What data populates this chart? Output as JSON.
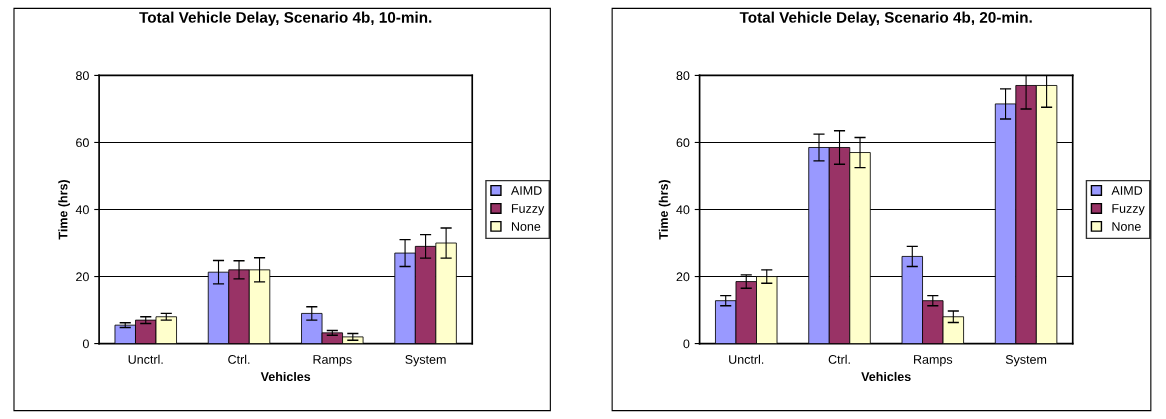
{
  "chart_data": [
    {
      "type": "bar",
      "title": "Total Vehicle Delay, Scenario 4b, 10-min.",
      "xlabel": "Vehicles",
      "ylabel": "Time (hrs)",
      "categories": [
        "Unctrl.",
        "Ctrl.",
        "Ramps",
        "System"
      ],
      "ylim": [
        0,
        80
      ],
      "yticks": [
        0,
        20,
        40,
        60,
        80
      ],
      "grid": "y",
      "legend": "right",
      "series": [
        {
          "name": "AIMD",
          "color": "#9999ff",
          "values": [
            5.5,
            21.3,
            9,
            27
          ],
          "errors": [
            0.7,
            3.5,
            2,
            4
          ]
        },
        {
          "name": "Fuzzy",
          "color": "#993366",
          "values": [
            7,
            22,
            3.2,
            29
          ],
          "errors": [
            1,
            2.7,
            0.7,
            3.5
          ]
        },
        {
          "name": "None",
          "color": "#ffffcc",
          "values": [
            8,
            22,
            2,
            30
          ],
          "errors": [
            1,
            3.6,
            1,
            4.5
          ]
        }
      ]
    },
    {
      "type": "bar",
      "title": "Total Vehicle Delay, Scenario 4b, 20-min.",
      "xlabel": "Vehicles",
      "ylabel": "Time (hrs)",
      "categories": [
        "Unctrl.",
        "Ctrl.",
        "Ramps",
        "System"
      ],
      "ylim": [
        0,
        80
      ],
      "yticks": [
        0,
        20,
        40,
        60,
        80
      ],
      "grid": "y",
      "legend": "right",
      "series": [
        {
          "name": "AIMD",
          "color": "#9999ff",
          "values": [
            12.8,
            58.5,
            26,
            71.5
          ],
          "errors": [
            1.5,
            4,
            3,
            4.5
          ]
        },
        {
          "name": "Fuzzy",
          "color": "#993366",
          "values": [
            18.5,
            58.5,
            12.8,
            77
          ],
          "errors": [
            2,
            5,
            1.5,
            [
              70,
              80
            ]
          ]
        },
        {
          "name": "None",
          "color": "#ffffcc",
          "values": [
            20,
            57,
            8,
            77
          ],
          "errors": [
            2,
            4.5,
            1.7,
            [
              70.5,
              80
            ]
          ]
        }
      ]
    }
  ]
}
